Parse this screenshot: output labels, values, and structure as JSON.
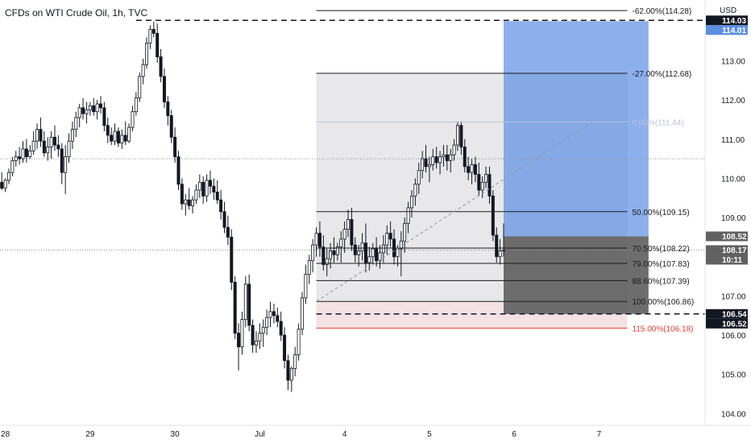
{
  "header": {
    "title": "CFDs on WTI Crude Oil, 1h, TVC"
  },
  "chart_data": {
    "type": "candlestick",
    "currency": "USD",
    "y_ticks": [
      "104.00",
      "105.00",
      "106.00",
      "107.00",
      "108.00",
      "109.00",
      "110.00",
      "111.00",
      "112.00",
      "113.00",
      "114.00"
    ],
    "x_ticks": [
      {
        "label": "28",
        "t": 0
      },
      {
        "label": "29",
        "t": 24
      },
      {
        "label": "30",
        "t": 48
      },
      {
        "label": "Jul",
        "t": 72
      },
      {
        "label": "4",
        "t": 96
      },
      {
        "label": "5",
        "t": 120
      },
      {
        "label": "6",
        "t": 144
      },
      {
        "label": "7",
        "t": 168
      }
    ],
    "ylim": [
      103.7,
      114.55
    ],
    "xlim": [
      -1.5,
      198
    ],
    "candles": [
      [
        -1,
        109.9,
        110.15,
        109.7,
        109.75
      ],
      [
        0,
        109.75,
        110.0,
        109.65,
        109.95
      ],
      [
        1,
        109.95,
        110.25,
        109.85,
        110.15
      ],
      [
        2,
        110.15,
        110.55,
        110.05,
        110.45
      ],
      [
        3,
        110.45,
        110.7,
        110.3,
        110.55
      ],
      [
        4,
        110.55,
        110.8,
        110.35,
        110.5
      ],
      [
        5,
        110.5,
        110.95,
        110.4,
        110.75
      ],
      [
        6,
        110.75,
        111.0,
        110.4,
        110.55
      ],
      [
        7,
        110.55,
        110.85,
        110.5,
        110.7
      ],
      [
        8,
        110.7,
        111.2,
        110.6,
        110.95
      ],
      [
        9,
        110.95,
        111.4,
        110.75,
        111.25
      ],
      [
        10,
        111.25,
        111.55,
        110.8,
        110.95
      ],
      [
        11,
        110.95,
        111.2,
        110.55,
        110.65
      ],
      [
        12,
        110.65,
        111.05,
        110.45,
        110.8
      ],
      [
        13,
        110.8,
        111.2,
        110.5,
        111.05
      ],
      [
        14,
        111.05,
        111.35,
        110.7,
        110.85
      ],
      [
        15,
        110.85,
        111.1,
        110.55,
        110.75
      ],
      [
        16,
        110.75,
        110.9,
        109.85,
        110.15
      ],
      [
        17,
        110.15,
        110.85,
        109.6,
        110.55
      ],
      [
        18,
        110.55,
        111.15,
        110.4,
        110.95
      ],
      [
        19,
        110.95,
        111.45,
        110.75,
        111.25
      ],
      [
        20,
        111.25,
        111.7,
        111.05,
        111.55
      ],
      [
        21,
        111.55,
        111.9,
        111.3,
        111.8
      ],
      [
        22,
        111.8,
        112.05,
        111.5,
        111.65
      ],
      [
        23,
        111.65,
        111.95,
        111.4,
        111.75
      ],
      [
        24,
        111.75,
        111.95,
        111.6,
        111.85
      ],
      [
        25,
        111.85,
        112.05,
        111.6,
        111.7
      ],
      [
        26,
        111.7,
        112.0,
        111.5,
        111.9
      ],
      [
        27,
        111.9,
        112.1,
        111.65,
        111.8
      ],
      [
        28,
        111.8,
        111.95,
        111.2,
        111.35
      ],
      [
        29,
        111.35,
        111.55,
        110.9,
        111.1
      ],
      [
        30,
        111.1,
        111.3,
        110.85,
        110.95
      ],
      [
        31,
        110.95,
        111.4,
        110.85,
        111.2
      ],
      [
        32,
        111.2,
        111.3,
        110.8,
        110.9
      ],
      [
        33,
        110.9,
        111.25,
        110.75,
        111.1
      ],
      [
        34,
        111.1,
        111.45,
        110.85,
        110.95
      ],
      [
        35,
        110.95,
        111.4,
        110.9,
        111.3
      ],
      [
        36,
        111.3,
        111.85,
        111.2,
        111.7
      ],
      [
        37,
        111.7,
        112.2,
        111.6,
        112.05
      ],
      [
        38,
        112.05,
        112.7,
        111.95,
        112.6
      ],
      [
        39,
        112.6,
        113.05,
        112.4,
        112.9
      ],
      [
        40,
        112.9,
        113.6,
        112.8,
        113.45
      ],
      [
        41,
        113.45,
        113.9,
        113.3,
        113.8
      ],
      [
        42,
        113.8,
        114.0,
        113.6,
        113.7
      ],
      [
        43,
        113.7,
        113.95,
        112.95,
        113.1
      ],
      [
        44,
        113.1,
        113.3,
        112.45,
        112.6
      ],
      [
        45,
        112.6,
        112.8,
        111.8,
        111.95
      ],
      [
        46,
        111.95,
        112.1,
        111.35,
        111.6
      ],
      [
        47,
        111.6,
        111.75,
        110.9,
        111.05
      ],
      [
        48,
        111.05,
        111.3,
        110.4,
        110.55
      ],
      [
        49,
        110.55,
        110.7,
        109.7,
        109.85
      ],
      [
        50,
        109.85,
        110.0,
        109.2,
        109.35
      ],
      [
        51,
        109.35,
        109.6,
        109.05,
        109.45
      ],
      [
        52,
        109.45,
        109.75,
        109.2,
        109.3
      ],
      [
        53,
        109.3,
        109.55,
        109.1,
        109.45
      ],
      [
        54,
        109.45,
        109.85,
        109.35,
        109.7
      ],
      [
        55,
        109.7,
        110.1,
        109.5,
        109.9
      ],
      [
        56,
        109.9,
        110.05,
        109.35,
        109.55
      ],
      [
        57,
        109.55,
        110.1,
        109.4,
        109.95
      ],
      [
        58,
        109.95,
        110.2,
        109.6,
        109.8
      ],
      [
        59,
        109.8,
        110.0,
        109.45,
        109.65
      ],
      [
        60,
        109.65,
        109.95,
        109.35,
        109.45
      ],
      [
        61,
        109.45,
        109.7,
        108.95,
        109.15
      ],
      [
        62,
        109.15,
        109.4,
        108.6,
        108.75
      ],
      [
        63,
        108.75,
        109.05,
        108.3,
        108.5
      ],
      [
        64,
        108.5,
        108.7,
        107.15,
        107.35
      ],
      [
        65,
        107.35,
        107.5,
        105.9,
        106.05
      ],
      [
        66,
        106.05,
        106.3,
        105.1,
        105.7
      ],
      [
        67,
        105.7,
        106.6,
        105.5,
        106.4
      ],
      [
        68,
        106.4,
        107.5,
        106.2,
        107.3
      ],
      [
        69,
        107.3,
        107.55,
        106.1,
        106.25
      ],
      [
        70,
        106.25,
        106.4,
        105.55,
        105.75
      ],
      [
        71,
        105.75,
        106.1,
        105.55,
        105.85
      ],
      [
        72,
        105.85,
        106.3,
        105.65,
        106.05
      ],
      [
        73,
        106.05,
        106.4,
        105.7,
        106.2
      ],
      [
        74,
        106.2,
        106.65,
        106.0,
        106.45
      ],
      [
        75,
        106.45,
        106.85,
        106.2,
        106.6
      ],
      [
        76,
        106.6,
        106.8,
        106.3,
        106.5
      ],
      [
        77,
        106.5,
        106.7,
        106.2,
        106.35
      ],
      [
        78,
        106.35,
        106.6,
        105.85,
        106.0
      ],
      [
        79,
        106.0,
        106.2,
        105.15,
        105.35
      ],
      [
        80,
        105.35,
        105.5,
        104.6,
        104.85
      ],
      [
        81,
        104.85,
        105.2,
        104.55,
        105.15
      ],
      [
        82,
        105.15,
        105.7,
        104.95,
        105.5
      ],
      [
        83,
        105.5,
        106.3,
        105.35,
        106.15
      ],
      [
        84,
        106.15,
        107.1,
        106.0,
        106.95
      ],
      [
        85,
        106.95,
        107.8,
        106.8,
        107.55
      ],
      [
        86,
        107.55,
        108.05,
        107.3,
        107.9
      ],
      [
        87,
        107.9,
        108.45,
        107.6,
        108.3
      ],
      [
        88,
        108.3,
        108.75,
        108.0,
        108.6
      ],
      [
        89,
        108.6,
        108.9,
        108.0,
        108.25
      ],
      [
        90,
        108.25,
        108.55,
        107.65,
        107.8
      ],
      [
        91,
        107.8,
        108.2,
        107.5,
        107.95
      ],
      [
        92,
        107.95,
        108.35,
        107.7,
        108.15
      ],
      [
        93,
        108.15,
        108.5,
        107.85,
        108.05
      ],
      [
        94,
        108.05,
        108.35,
        107.9,
        108.25
      ],
      [
        95,
        108.25,
        108.65,
        107.85,
        108.45
      ],
      [
        96,
        108.45,
        108.9,
        108.1,
        108.7
      ],
      [
        97,
        108.7,
        109.2,
        108.5,
        108.95
      ],
      [
        98,
        108.95,
        109.25,
        108.15,
        108.3
      ],
      [
        99,
        108.3,
        108.5,
        107.85,
        108.05
      ],
      [
        100,
        108.05,
        108.3,
        107.75,
        108.15
      ],
      [
        101,
        108.15,
        108.6,
        107.9,
        108.35
      ],
      [
        102,
        108.35,
        108.85,
        107.6,
        107.85
      ],
      [
        103,
        107.85,
        108.25,
        107.65,
        108.0
      ],
      [
        104,
        108.0,
        108.35,
        107.8,
        108.2
      ],
      [
        105,
        108.2,
        108.5,
        107.75,
        107.9
      ],
      [
        106,
        107.9,
        108.3,
        107.7,
        108.1
      ],
      [
        107,
        108.1,
        108.55,
        107.85,
        108.3
      ],
      [
        108,
        108.3,
        108.8,
        108.05,
        108.6
      ],
      [
        109,
        108.6,
        108.9,
        108.25,
        108.45
      ],
      [
        110,
        108.45,
        108.7,
        107.8,
        108.0
      ],
      [
        111,
        108.0,
        108.3,
        107.75,
        108.2
      ],
      [
        112,
        108.2,
        108.65,
        107.5,
        108.4
      ],
      [
        113,
        108.4,
        109.0,
        108.1,
        108.85
      ],
      [
        114,
        108.85,
        109.4,
        108.6,
        109.25
      ],
      [
        115,
        109.25,
        109.7,
        109.0,
        109.55
      ],
      [
        116,
        109.55,
        110.0,
        109.3,
        109.85
      ],
      [
        117,
        109.85,
        110.4,
        109.6,
        110.2
      ],
      [
        118,
        110.2,
        110.7,
        110.0,
        110.5
      ],
      [
        119,
        110.5,
        110.85,
        110.15,
        110.3
      ],
      [
        120,
        110.3,
        110.55,
        109.9,
        110.35
      ],
      [
        121,
        110.35,
        110.75,
        110.2,
        110.55
      ],
      [
        122,
        110.55,
        110.8,
        110.25,
        110.4
      ],
      [
        123,
        110.4,
        110.7,
        110.1,
        110.55
      ],
      [
        124,
        110.55,
        110.85,
        110.3,
        110.6
      ],
      [
        125,
        110.6,
        110.85,
        110.2,
        110.45
      ],
      [
        126,
        110.45,
        110.75,
        110.15,
        110.6
      ],
      [
        127,
        110.6,
        111.0,
        110.45,
        110.85
      ],
      [
        128,
        110.85,
        111.45,
        110.7,
        111.35
      ],
      [
        129,
        111.35,
        111.45,
        110.6,
        110.8
      ],
      [
        130,
        110.8,
        111.0,
        110.15,
        110.3
      ],
      [
        131,
        110.3,
        110.55,
        109.95,
        110.15
      ],
      [
        132,
        110.15,
        110.5,
        109.85,
        110.35
      ],
      [
        133,
        110.35,
        110.55,
        109.9,
        110.1
      ],
      [
        134,
        110.1,
        110.4,
        109.55,
        109.7
      ],
      [
        135,
        109.7,
        110.05,
        109.5,
        109.9
      ],
      [
        136,
        109.9,
        110.3,
        109.75,
        110.1
      ],
      [
        137,
        110.1,
        110.3,
        109.35,
        109.55
      ],
      [
        138,
        109.55,
        109.7,
        108.4,
        108.55
      ],
      [
        139,
        108.55,
        108.75,
        107.85,
        108.0
      ],
      [
        140,
        108.0,
        108.45,
        107.8,
        108.15
      ],
      [
        141,
        108.15,
        108.85,
        108.0,
        108.17
      ]
    ],
    "drawing": {
      "t_start": 88,
      "t_end": 176,
      "levels": [
        {
          "label": "-62.00%(114.28)",
          "value": 114.28,
          "color": "#1a1a1a",
          "line": true
        },
        {
          "label": "-27.00%(112.68)",
          "value": 112.68,
          "color": "#1a1a1a",
          "line": true
        },
        {
          "label": "0.00%(111.44)",
          "value": 111.44,
          "color": "#b9c4d8",
          "line": true
        },
        {
          "label": "50.00%(109.15)",
          "value": 109.15,
          "color": "#1a1a1a",
          "line": true
        },
        {
          "label": "70.50%(108.22)",
          "value": 108.22,
          "color": "#1a1a1a",
          "line": true
        },
        {
          "label": "79.00%(107.83)",
          "value": 107.83,
          "color": "#1a1a1a",
          "line": true
        },
        {
          "label": "88.60%(107.39)",
          "value": 107.39,
          "color": "#1a1a1a",
          "line": true
        },
        {
          "label": "100.00%(106.86)",
          "value": 106.86,
          "color": "#1a1a1a",
          "line": true
        },
        {
          "label": "115.00%(106.18)",
          "value": 106.18,
          "color": "#e53935",
          "line": true
        }
      ],
      "fib_zone": {
        "top": 112.68,
        "bottom": 106.18
      },
      "red_zone": {
        "top": 106.86,
        "bottom": 106.18
      },
      "profit_zone": {
        "t0": 141,
        "t1": 182,
        "top": 114.01,
        "bottom": 108.52,
        "color": "#5b8fe3"
      },
      "stop_zone": {
        "t0": 141,
        "t1": 182,
        "top": 108.52,
        "bottom": 106.54,
        "color": "#616161"
      },
      "trend_line": {
        "t0": 88,
        "v0": 106.86,
        "t1": 166,
        "v1": 111.44
      },
      "hline_top": {
        "value": 114.03,
        "t0": 37
      },
      "hline_bottom": {
        "value": 106.54,
        "t0": 88
      },
      "dotted_lines": [
        110.5,
        108.17
      ]
    },
    "price_badges": [
      {
        "text": "114.03",
        "value": 114.03,
        "bg": "#131722",
        "fg": "#ffffff"
      },
      {
        "text": "114.01",
        "value": 114.01,
        "bg": "#5b8fe3",
        "fg": "#ffffff"
      },
      {
        "text": "108.52",
        "value": 108.52,
        "bg": "#616161",
        "fg": "#ffffff"
      },
      {
        "text": "108.17",
        "value": 108.17,
        "bg": "#616161",
        "fg": "#ffffff"
      },
      {
        "text": "10:11",
        "value": 108.17,
        "bg": "#616161",
        "fg": "#ffffff",
        "sub": true
      },
      {
        "text": "106.54",
        "value": 106.54,
        "bg": "#131722",
        "fg": "#ffffff"
      },
      {
        "text": "106.52",
        "value": 106.52,
        "bg": "#131722",
        "fg": "#ffffff"
      }
    ]
  }
}
